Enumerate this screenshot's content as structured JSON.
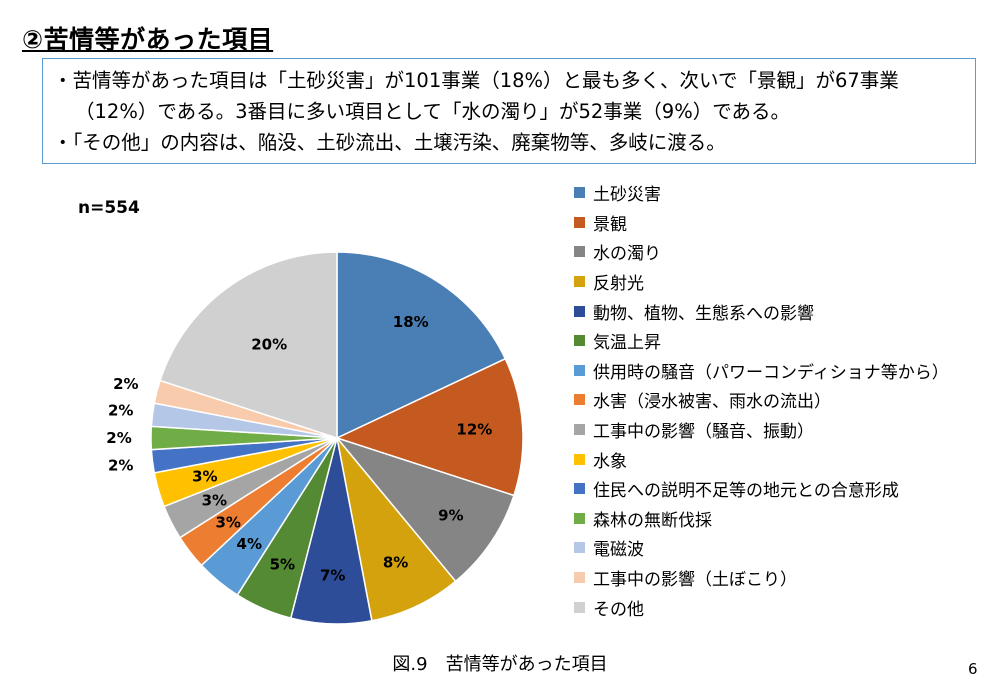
{
  "heading": "②苦情等があった項目",
  "summary": {
    "line1": "・苦情等があった項目は「土砂災害」が101事業（18%）と最も多く、次いで「景観」が67事業（12%）である。3番目に多い項目として「水の濁り」が52事業（9%）である。",
    "line2": "・「その他」の内容は、陥没、土砂流出、土壌汚染、廃棄物等、多岐に渡る。"
  },
  "caption": "図.9　苦情等があった項目",
  "page_number": "6",
  "chart_data": {
    "type": "pie",
    "sample_label": "n=554",
    "start_angle": "12 o'clock, clockwise",
    "legend_placement": "right",
    "slices": [
      {
        "label": "土砂災害",
        "value": 18,
        "display": "18%",
        "color": "#4a7fb5"
      },
      {
        "label": "景観",
        "value": 12,
        "display": "12%",
        "color": "#c55a20"
      },
      {
        "label": "水の濁り",
        "value": 9,
        "display": "9%",
        "color": "#858585"
      },
      {
        "label": "反射光",
        "value": 8,
        "display": "8%",
        "color": "#d4a20c"
      },
      {
        "label": "動物、植物、生態系への影響",
        "value": 7,
        "display": "7%",
        "color": "#2e4d99"
      },
      {
        "label": "気温上昇",
        "value": 5,
        "display": "5%",
        "color": "#538a33"
      },
      {
        "label": "供用時の騒音（パワーコンディショナ等から）",
        "value": 4,
        "display": "4%",
        "color": "#5b9bd5"
      },
      {
        "label": "水害（浸水被害、雨水の流出）",
        "value": 3,
        "display": "3%",
        "color": "#ed7d31"
      },
      {
        "label": "工事中の影響（騒音、振動）",
        "value": 3,
        "display": "3%",
        "color": "#a5a5a5"
      },
      {
        "label": "水象",
        "value": 3,
        "display": "3%",
        "color": "#ffc000"
      },
      {
        "label": "住民への説明不足等の地元との合意形成",
        "value": 2,
        "display": "2%",
        "color": "#4472c4"
      },
      {
        "label": "森林の無断伐採",
        "value": 2,
        "display": "2%",
        "color": "#70ad47"
      },
      {
        "label": "電磁波",
        "value": 2,
        "display": "2%",
        "color": "#b4c7e7"
      },
      {
        "label": "工事中の影響（土ぼこり）",
        "value": 2,
        "display": "2%",
        "color": "#f8cbad"
      },
      {
        "label": "その他",
        "value": 20,
        "display": "20%",
        "color": "#d0d0d0"
      }
    ]
  }
}
